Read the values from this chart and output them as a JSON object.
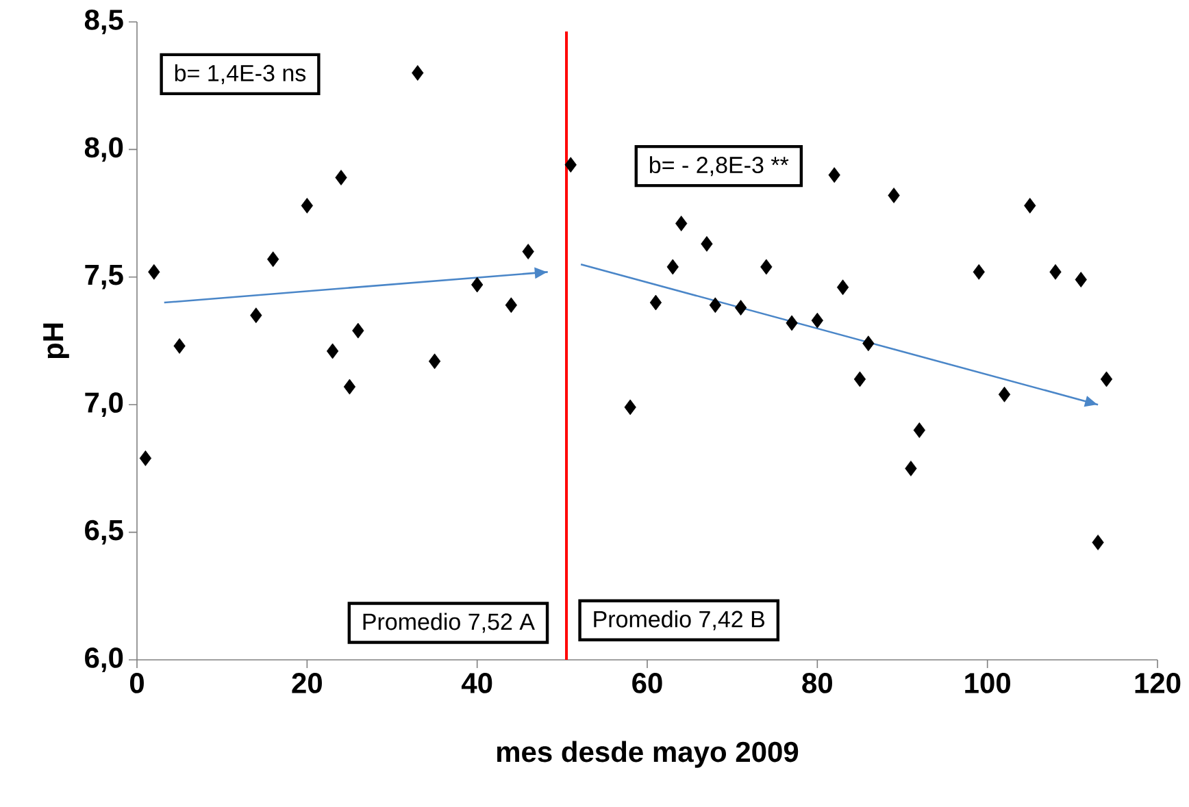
{
  "chart_data": {
    "type": "scatter",
    "xlabel": "mes desde mayo 2009",
    "ylabel": "pH",
    "xlim": [
      0,
      120
    ],
    "xticks": [
      0,
      20,
      40,
      60,
      80,
      100,
      120
    ],
    "ylim": [
      6.0,
      8.5
    ],
    "yticks": [
      {
        "value": 6.0,
        "label": "6,0"
      },
      {
        "value": 6.5,
        "label": "6,5"
      },
      {
        "value": 7.0,
        "label": "7,0"
      },
      {
        "value": 7.5,
        "label": "7,5"
      },
      {
        "value": 8.0,
        "label": "8,0"
      },
      {
        "value": 8.5,
        "label": "8,5"
      }
    ],
    "grid": false,
    "legend": false,
    "series": [
      {
        "type": "scatter",
        "marker": "diamond",
        "color": "#000000",
        "x": [
          1,
          2,
          5,
          14,
          16,
          20,
          23,
          24,
          25,
          26,
          33,
          35,
          40,
          44,
          46,
          51,
          58,
          61,
          63,
          64,
          67,
          68,
          71,
          74,
          77,
          80,
          82,
          83,
          85,
          86,
          89,
          91,
          92,
          99,
          102,
          105,
          108,
          111,
          113,
          114
        ],
        "values": [
          6.79,
          7.52,
          7.23,
          7.35,
          7.57,
          7.78,
          7.21,
          7.89,
          7.07,
          7.29,
          8.3,
          7.17,
          7.47,
          7.39,
          7.6,
          7.94,
          6.99,
          7.4,
          7.54,
          7.71,
          7.63,
          7.39,
          7.38,
          7.54,
          7.32,
          7.33,
          7.9,
          7.46,
          7.1,
          7.24,
          7.82,
          6.75,
          6.9,
          7.52,
          7.04,
          7.78,
          7.52,
          7.49,
          6.46,
          7.1
        ]
      },
      {
        "type": "line",
        "marker": "none",
        "color": "#4a86c8",
        "x": [
          3.2,
          48.3
        ],
        "values": [
          7.4,
          7.52
        ]
      },
      {
        "type": "line",
        "marker": "none",
        "color": "#4a86c8",
        "x": [
          52.2,
          113
        ],
        "values": [
          7.55,
          7.0
        ]
      }
    ],
    "ref_lines": [
      {
        "axis": "x",
        "value": 50.5,
        "color": "#ff0000"
      }
    ],
    "annotations": [
      "b= 1,4E-3 ns",
      "b= - 2,8E-3 **",
      "Promedio 7,52 A",
      "Promedio 7,42 B"
    ]
  }
}
